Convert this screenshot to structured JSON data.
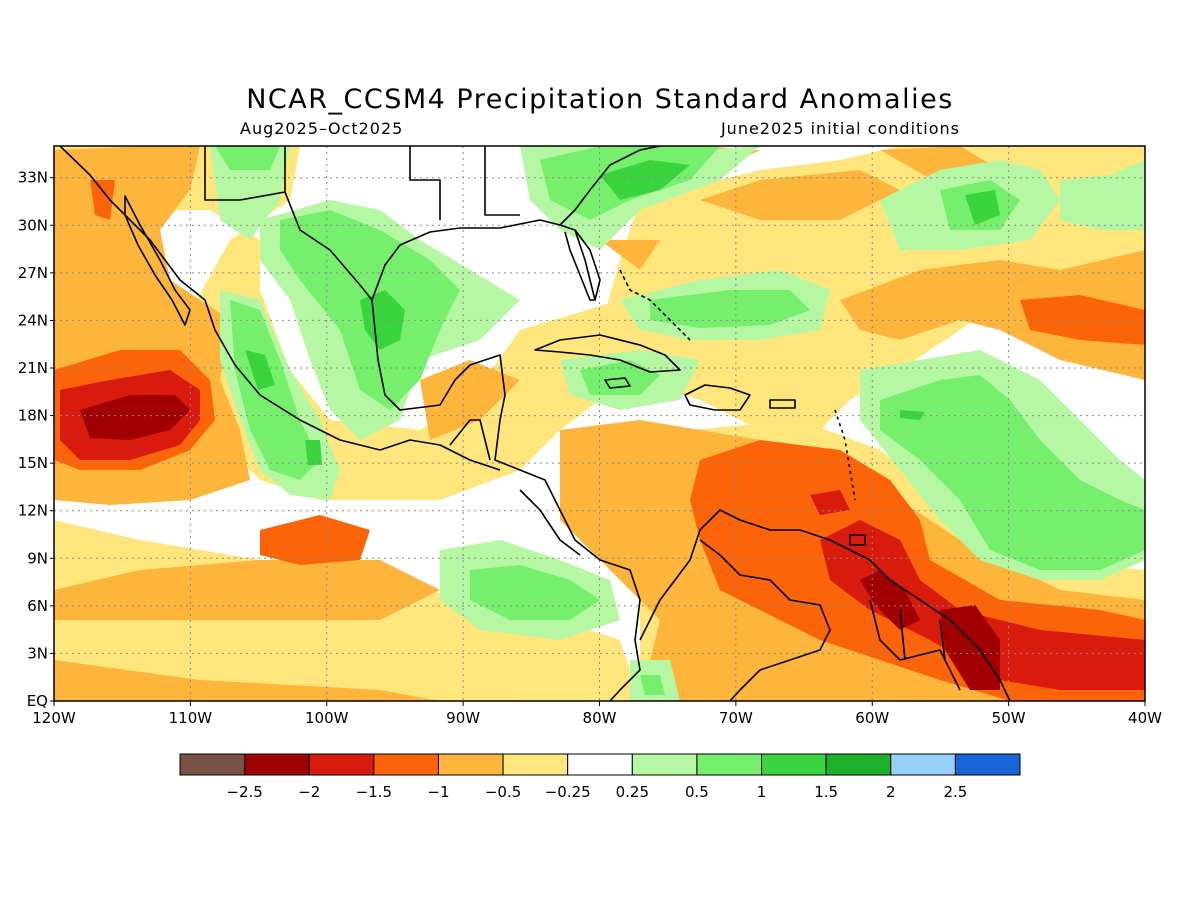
{
  "title": "NCAR_CCSM4 Precipitation Standard Anomalies",
  "subtitle_left": "Aug2025–Oct2025",
  "subtitle_right": "June2025 initial conditions",
  "map": {
    "lon_range": [
      -120,
      -40
    ],
    "lat_range": [
      0,
      35
    ],
    "lat_ticks": [
      "33N",
      "30N",
      "27N",
      "24N",
      "21N",
      "18N",
      "15N",
      "12N",
      "9N",
      "6N",
      "3N",
      "EQ"
    ],
    "lon_ticks": [
      "120W",
      "110W",
      "100W",
      "90W",
      "80W",
      "70W",
      "60W",
      "50W",
      "40W"
    ],
    "grid": "dotted"
  },
  "legend": {
    "colors": [
      "#7a5147",
      "#a00000",
      "#d81b0c",
      "#fb6409",
      "#fdb53b",
      "#fee67c",
      "#ffffff",
      "#b5f7a3",
      "#76ef6c",
      "#3ad43f",
      "#1db02a",
      "#96d1fb",
      "#1765d8"
    ],
    "labels": [
      "−2.5",
      "−2",
      "−1.5",
      "−1",
      "−0.5",
      "−0.25",
      "0.25",
      "0.5",
      "1",
      "1.5",
      "2",
      "2.5"
    ]
  }
}
